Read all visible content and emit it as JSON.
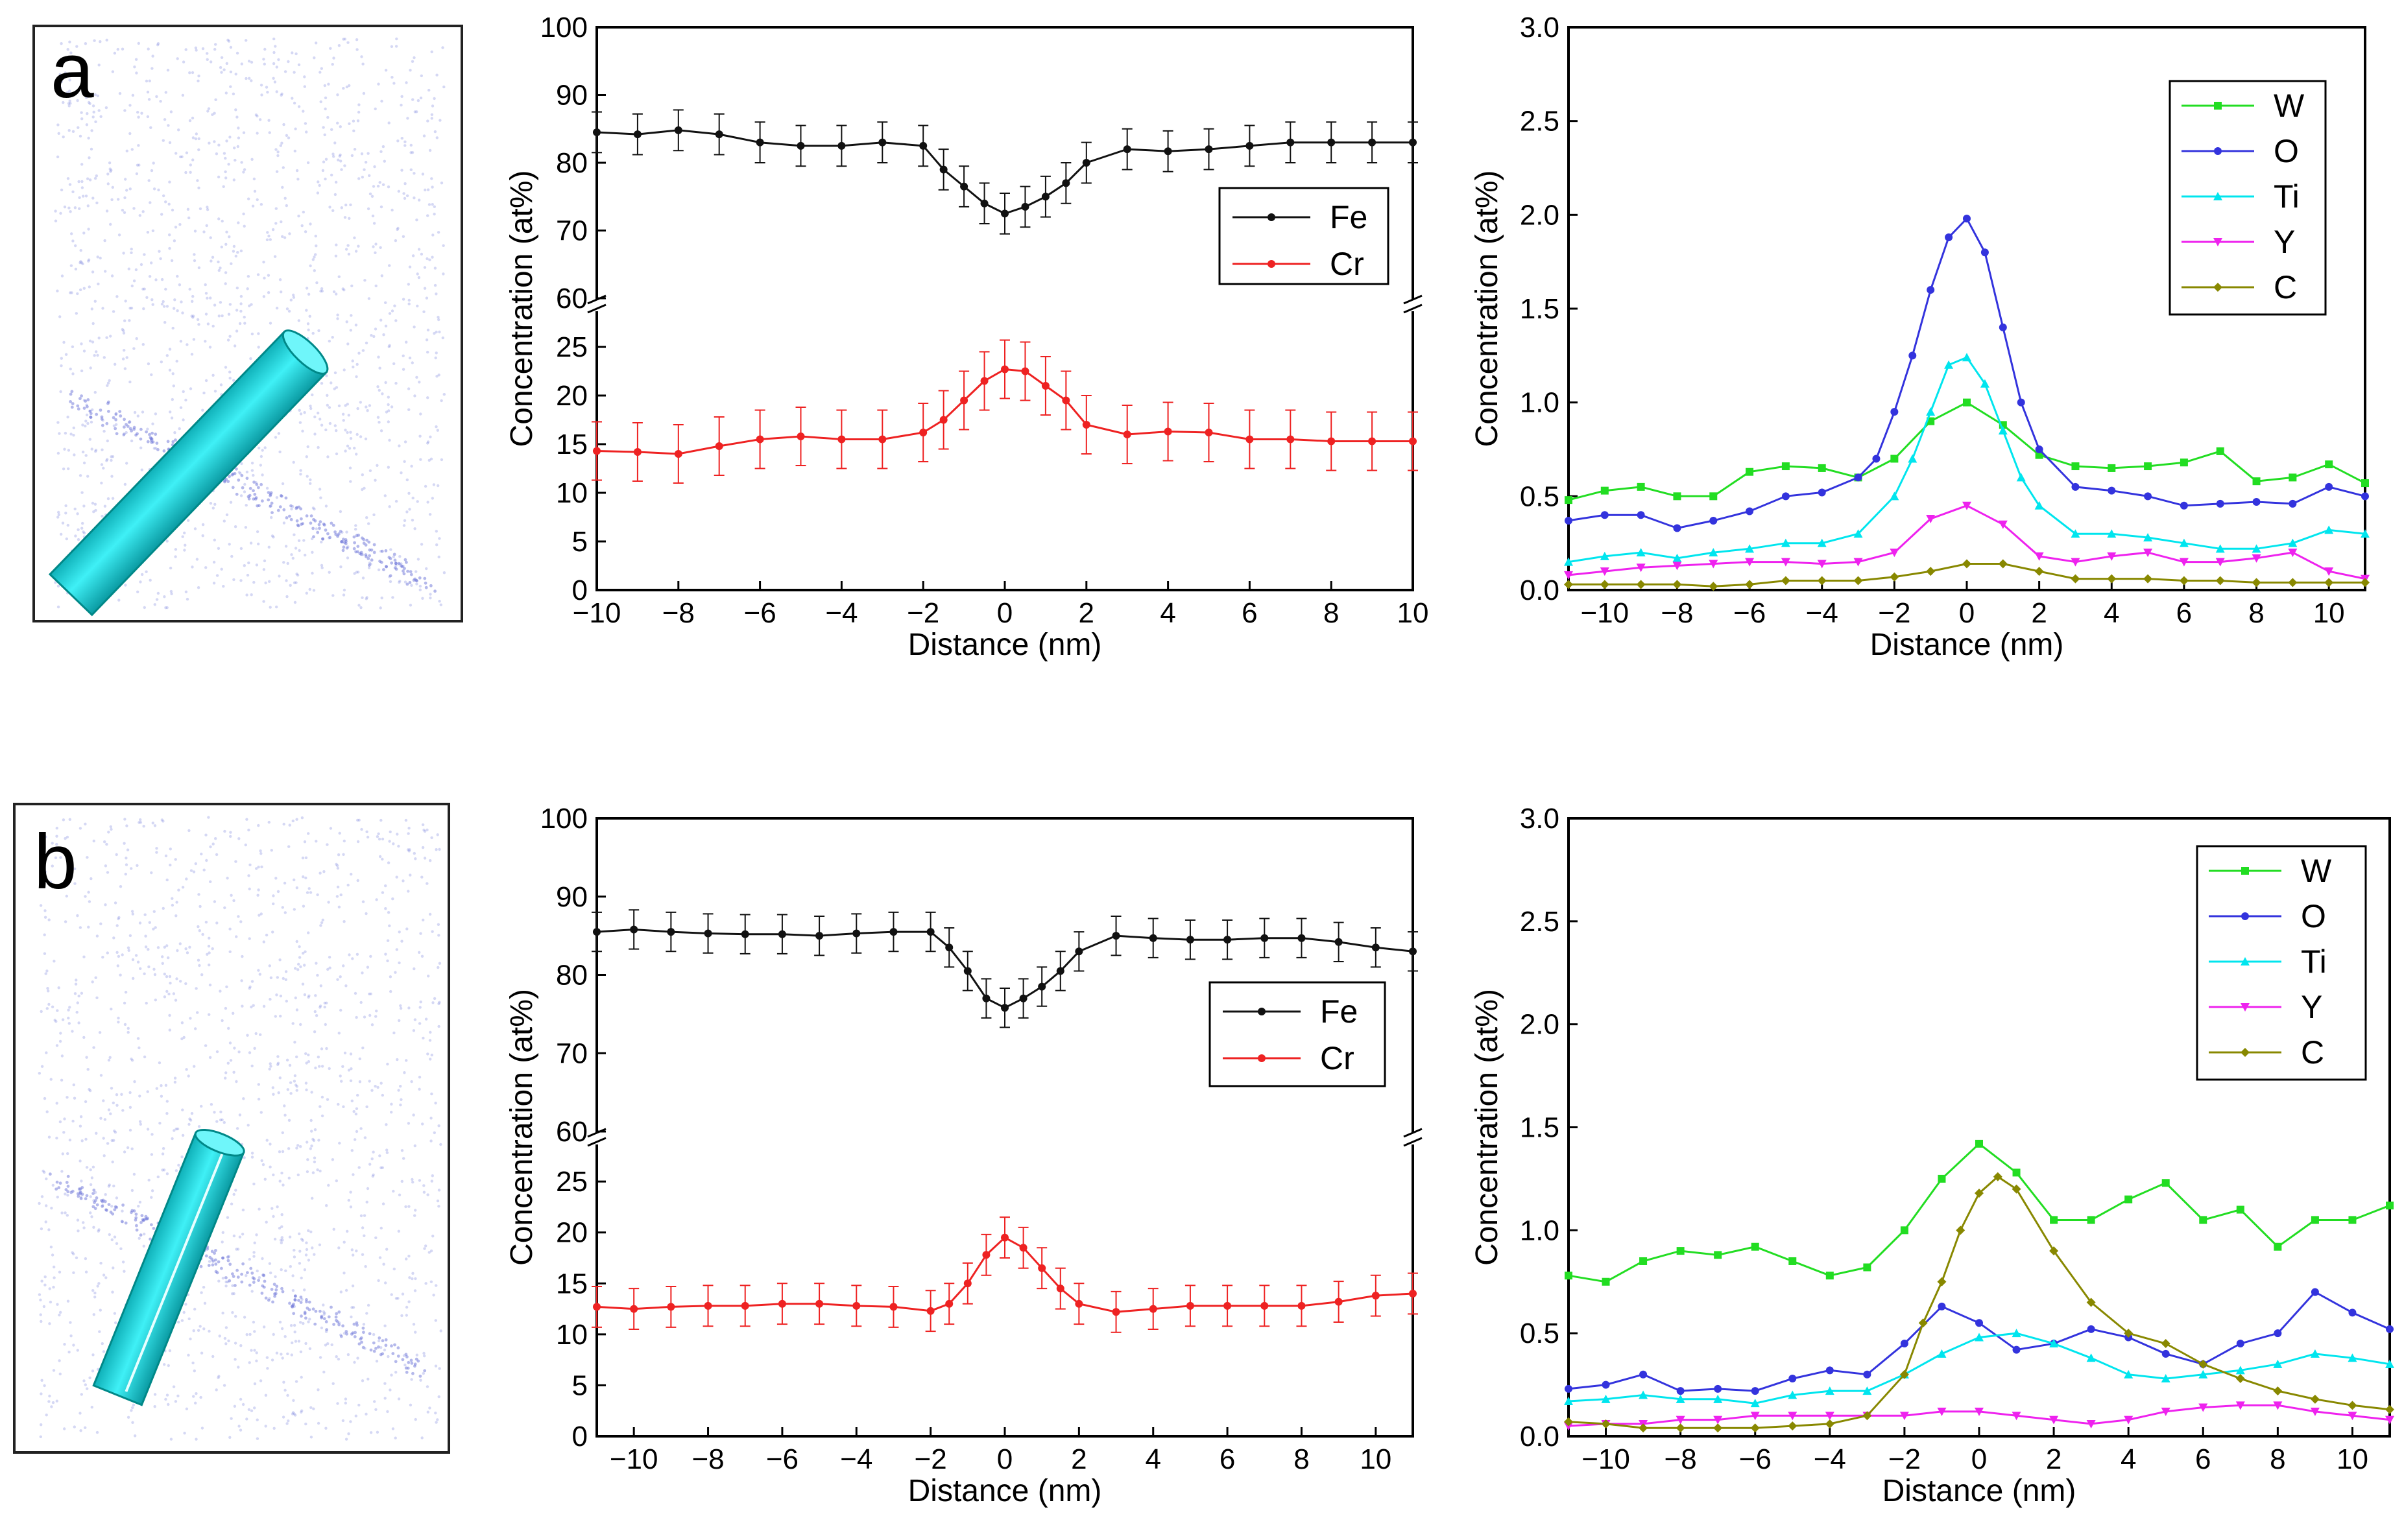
{
  "figure": {
    "panels": [
      {
        "letter": "a"
      },
      {
        "letter": "b"
      }
    ]
  },
  "colors": {
    "Fe": "#111111",
    "Cr": "#ee2222",
    "W": "#22dd22",
    "O": "#3333dd",
    "Ti": "#00e5ee",
    "Y": "#ee22ee",
    "C": "#888800",
    "rod": "#1fd0d8",
    "cloud": "#8890e0"
  },
  "chart_data": [
    {
      "id": "a-fecr",
      "type": "line",
      "panel": "a",
      "xlabel": "Distance (nm)",
      "ylabel": "Concentration (at%)",
      "xlim": [
        -10,
        10
      ],
      "xticks": [
        -10,
        -8,
        -6,
        -4,
        -2,
        0,
        2,
        4,
        6,
        8,
        10
      ],
      "ylim_lower": [
        0,
        28
      ],
      "ylim_upper": [
        60,
        100
      ],
      "yticks_lower": [
        0,
        5,
        10,
        15,
        20,
        25
      ],
      "yticks_upper": [
        60,
        70,
        80,
        90,
        100
      ],
      "legend": {
        "position": "right",
        "entries": [
          "Fe",
          "Cr"
        ]
      },
      "series": [
        {
          "name": "Fe",
          "err": 3,
          "x": [
            -10,
            -9,
            -8,
            -7,
            -6,
            -5,
            -4,
            -3,
            -2,
            -1.5,
            -1,
            -0.5,
            0,
            0.5,
            1,
            1.5,
            2,
            3,
            4,
            5,
            6,
            7,
            8,
            9,
            10
          ],
          "y": [
            84.5,
            84.2,
            84.8,
            84.2,
            83,
            82.5,
            82.5,
            83,
            82.5,
            79,
            76.5,
            74,
            72.5,
            73.5,
            75,
            77,
            80,
            82,
            81.7,
            82,
            82.5,
            83,
            83,
            83,
            83
          ]
        },
        {
          "name": "Cr",
          "err": 3,
          "x": [
            -10,
            -9,
            -8,
            -7,
            -6,
            -5,
            -4,
            -3,
            -2,
            -1.5,
            -1,
            -0.5,
            0,
            0.5,
            1,
            1.5,
            2,
            3,
            4,
            5,
            6,
            7,
            8,
            9,
            10
          ],
          "y": [
            14.3,
            14.2,
            14,
            14.8,
            15.5,
            15.8,
            15.5,
            15.5,
            16.2,
            17.5,
            19.5,
            21.5,
            22.7,
            22.5,
            21,
            19.5,
            17,
            16,
            16.3,
            16.2,
            15.5,
            15.5,
            15.3,
            15.3,
            15.3
          ]
        }
      ]
    },
    {
      "id": "a-minor",
      "type": "line",
      "panel": "a",
      "xlabel": "Distance (nm)",
      "ylabel": "Concentration (at%)",
      "xlim": [
        -11,
        11
      ],
      "xticks": [
        -10,
        -8,
        -6,
        -4,
        -2,
        0,
        2,
        4,
        6,
        8,
        10
      ],
      "ylim": [
        0,
        3.0
      ],
      "yticks": [
        "0.0",
        "0.5",
        "1.0",
        "1.5",
        "2.0",
        "2.5",
        "3.0"
      ],
      "legend": {
        "position": "top-right",
        "entries": [
          "W",
          "O",
          "Ti",
          "Y",
          "C"
        ]
      },
      "series": [
        {
          "name": "W",
          "x": [
            -11,
            -10,
            -9,
            -8,
            -7,
            -6,
            -5,
            -4,
            -3,
            -2,
            -1,
            0,
            1,
            2,
            3,
            4,
            5,
            6,
            7,
            8,
            9,
            10,
            11
          ],
          "y": [
            0.48,
            0.53,
            0.55,
            0.5,
            0.5,
            0.63,
            0.66,
            0.65,
            0.6,
            0.7,
            0.9,
            1.0,
            0.88,
            0.72,
            0.66,
            0.65,
            0.66,
            0.68,
            0.74,
            0.58,
            0.6,
            0.67,
            0.57
          ]
        },
        {
          "name": "O",
          "x": [
            -11,
            -10,
            -9,
            -8,
            -7,
            -6,
            -5,
            -4,
            -3,
            -2.5,
            -2,
            -1.5,
            -1,
            -0.5,
            0,
            0.5,
            1,
            1.5,
            2,
            3,
            4,
            5,
            6,
            7,
            8,
            9,
            10,
            11
          ],
          "y": [
            0.37,
            0.4,
            0.4,
            0.33,
            0.37,
            0.42,
            0.5,
            0.52,
            0.6,
            0.7,
            0.95,
            1.25,
            1.6,
            1.88,
            1.98,
            1.8,
            1.4,
            1.0,
            0.75,
            0.55,
            0.53,
            0.5,
            0.45,
            0.46,
            0.47,
            0.46,
            0.55,
            0.5
          ]
        },
        {
          "name": "Ti",
          "x": [
            -11,
            -10,
            -9,
            -8,
            -7,
            -6,
            -5,
            -4,
            -3,
            -2,
            -1.5,
            -1,
            -0.5,
            0,
            0.5,
            1,
            1.5,
            2,
            3,
            4,
            5,
            6,
            7,
            8,
            9,
            10,
            11
          ],
          "y": [
            0.15,
            0.18,
            0.2,
            0.17,
            0.2,
            0.22,
            0.25,
            0.25,
            0.3,
            0.5,
            0.7,
            0.95,
            1.2,
            1.24,
            1.1,
            0.85,
            0.6,
            0.45,
            0.3,
            0.3,
            0.28,
            0.25,
            0.22,
            0.22,
            0.25,
            0.32,
            0.3
          ]
        },
        {
          "name": "Y",
          "x": [
            -11,
            -10,
            -9,
            -8,
            -7,
            -6,
            -5,
            -4,
            -3,
            -2,
            -1,
            0,
            1,
            2,
            3,
            4,
            5,
            6,
            7,
            8,
            9,
            10,
            11
          ],
          "y": [
            0.08,
            0.1,
            0.12,
            0.13,
            0.14,
            0.15,
            0.15,
            0.14,
            0.15,
            0.2,
            0.38,
            0.45,
            0.35,
            0.18,
            0.15,
            0.18,
            0.2,
            0.15,
            0.15,
            0.17,
            0.2,
            0.1,
            0.06
          ]
        },
        {
          "name": "C",
          "x": [
            -11,
            -10,
            -9,
            -8,
            -7,
            -6,
            -5,
            -4,
            -3,
            -2,
            -1,
            0,
            1,
            2,
            3,
            4,
            5,
            6,
            7,
            8,
            9,
            10,
            11
          ],
          "y": [
            0.03,
            0.03,
            0.03,
            0.03,
            0.02,
            0.03,
            0.05,
            0.05,
            0.05,
            0.07,
            0.1,
            0.14,
            0.14,
            0.1,
            0.06,
            0.06,
            0.06,
            0.05,
            0.05,
            0.04,
            0.04,
            0.04,
            0.04
          ]
        }
      ]
    },
    {
      "id": "b-fecr",
      "type": "line",
      "panel": "b",
      "xlabel": "Distance (nm)",
      "ylabel": "Concentration (at%)",
      "xlim": [
        -11,
        11
      ],
      "xticks": [
        -10,
        -8,
        -6,
        -4,
        -2,
        0,
        2,
        4,
        6,
        8,
        10
      ],
      "ylim_lower": [
        0,
        28
      ],
      "ylim_upper": [
        60,
        100
      ],
      "yticks_lower": [
        0,
        5,
        10,
        15,
        20,
        25
      ],
      "yticks_upper": [
        60,
        70,
        80,
        90,
        100
      ],
      "legend": {
        "position": "right",
        "entries": [
          "Fe",
          "Cr"
        ]
      },
      "series": [
        {
          "name": "Fe",
          "err": 2.5,
          "x": [
            -11,
            -10,
            -9,
            -8,
            -7,
            -6,
            -5,
            -4,
            -3,
            -2,
            -1.5,
            -1,
            -0.5,
            0,
            0.5,
            1,
            1.5,
            2,
            3,
            4,
            5,
            6,
            7,
            8,
            9,
            10,
            11
          ],
          "y": [
            85.5,
            85.8,
            85.5,
            85.3,
            85.2,
            85.2,
            85,
            85.3,
            85.5,
            85.5,
            83.5,
            80.5,
            77,
            75.8,
            77,
            78.5,
            80.5,
            83,
            85,
            84.7,
            84.5,
            84.5,
            84.7,
            84.7,
            84.2,
            83.5,
            83
          ]
        },
        {
          "name": "Cr",
          "err": 2,
          "x": [
            -11,
            -10,
            -9,
            -8,
            -7,
            -6,
            -5,
            -4,
            -3,
            -2,
            -1.5,
            -1,
            -0.5,
            0,
            0.5,
            1,
            1.5,
            2,
            3,
            4,
            5,
            6,
            7,
            8,
            9,
            10,
            11
          ],
          "y": [
            12.7,
            12.5,
            12.7,
            12.8,
            12.8,
            13,
            13,
            12.8,
            12.7,
            12.3,
            13,
            15,
            17.8,
            19.5,
            18.5,
            16.5,
            14.5,
            13,
            12.2,
            12.5,
            12.8,
            12.8,
            12.8,
            12.8,
            13.2,
            13.8,
            14
          ]
        }
      ]
    },
    {
      "id": "b-minor",
      "type": "line",
      "panel": "b",
      "xlabel": "Distance (nm)",
      "ylabel": "Concentration (at%)",
      "xlim": [
        -11,
        11
      ],
      "xticks": [
        -10,
        -8,
        -6,
        -4,
        -2,
        0,
        2,
        4,
        6,
        8,
        10
      ],
      "ylim": [
        0,
        3.0
      ],
      "yticks": [
        "0.0",
        "0.5",
        "1.0",
        "1.5",
        "2.0",
        "2.5",
        "3.0"
      ],
      "legend": {
        "position": "top-right",
        "entries": [
          "W",
          "O",
          "Ti",
          "Y",
          "C"
        ]
      },
      "series": [
        {
          "name": "W",
          "x": [
            -11,
            -10,
            -9,
            -8,
            -7,
            -6,
            -5,
            -4,
            -3,
            -2,
            -1,
            0,
            1,
            2,
            3,
            4,
            5,
            6,
            7,
            8,
            9,
            10,
            11
          ],
          "y": [
            0.78,
            0.75,
            0.85,
            0.9,
            0.88,
            0.92,
            0.85,
            0.78,
            0.82,
            1.0,
            1.25,
            1.42,
            1.28,
            1.05,
            1.05,
            1.15,
            1.23,
            1.05,
            1.1,
            0.92,
            1.05,
            1.05,
            1.12
          ]
        },
        {
          "name": "O",
          "x": [
            -11,
            -10,
            -9,
            -8,
            -7,
            -6,
            -5,
            -4,
            -3,
            -2,
            -1,
            0,
            1,
            2,
            3,
            4,
            5,
            6,
            7,
            8,
            9,
            10,
            11
          ],
          "y": [
            0.23,
            0.25,
            0.3,
            0.22,
            0.23,
            0.22,
            0.28,
            0.32,
            0.3,
            0.45,
            0.63,
            0.55,
            0.42,
            0.45,
            0.52,
            0.48,
            0.4,
            0.35,
            0.45,
            0.5,
            0.7,
            0.6,
            0.52
          ]
        },
        {
          "name": "Ti",
          "x": [
            -11,
            -10,
            -9,
            -8,
            -7,
            -6,
            -5,
            -4,
            -3,
            -2,
            -1,
            0,
            1,
            2,
            3,
            4,
            5,
            6,
            7,
            8,
            9,
            10,
            11
          ],
          "y": [
            0.17,
            0.18,
            0.2,
            0.18,
            0.18,
            0.16,
            0.2,
            0.22,
            0.22,
            0.3,
            0.4,
            0.48,
            0.5,
            0.45,
            0.38,
            0.3,
            0.28,
            0.3,
            0.32,
            0.35,
            0.4,
            0.38,
            0.35
          ]
        },
        {
          "name": "Y",
          "x": [
            -11,
            -10,
            -9,
            -8,
            -7,
            -6,
            -5,
            -4,
            -3,
            -2,
            -1,
            0,
            1,
            2,
            3,
            4,
            5,
            6,
            7,
            8,
            9,
            10,
            11
          ],
          "y": [
            0.05,
            0.06,
            0.06,
            0.08,
            0.08,
            0.1,
            0.1,
            0.1,
            0.1,
            0.1,
            0.12,
            0.12,
            0.1,
            0.08,
            0.06,
            0.08,
            0.12,
            0.14,
            0.15,
            0.15,
            0.12,
            0.1,
            0.08
          ]
        },
        {
          "name": "C",
          "x": [
            -11,
            -10,
            -9,
            -8,
            -7,
            -6,
            -5,
            -4,
            -3,
            -2,
            -1.5,
            -1,
            -0.5,
            0,
            0.5,
            1,
            2,
            3,
            4,
            5,
            6,
            7,
            8,
            9,
            10,
            11
          ],
          "y": [
            0.07,
            0.06,
            0.04,
            0.04,
            0.04,
            0.04,
            0.05,
            0.06,
            0.1,
            0.3,
            0.55,
            0.75,
            1.0,
            1.18,
            1.26,
            1.2,
            0.9,
            0.65,
            0.5,
            0.45,
            0.35,
            0.28,
            0.22,
            0.18,
            0.15,
            0.13
          ]
        }
      ]
    }
  ]
}
